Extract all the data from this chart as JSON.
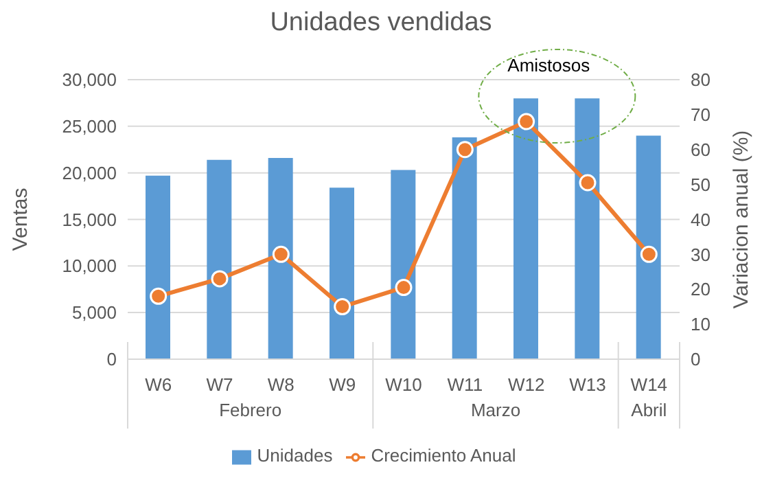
{
  "chart_data": {
    "type": "bar",
    "title": "Unidades vendidas",
    "ylabel": "Ventas",
    "y2label": "Variacion anual (%)",
    "categories": [
      "W6",
      "W7",
      "W8",
      "W9",
      "W10",
      "W11",
      "W12",
      "W13",
      "W14"
    ],
    "series": [
      {
        "name": "Unidades",
        "color": "#5b9bd5",
        "values": [
          19700,
          21400,
          21600,
          18400,
          20300,
          23800,
          28000,
          28000,
          24000
        ]
      },
      {
        "name": "Crecimiento Anual",
        "type": "line",
        "axis": "y2",
        "color": "#ed7d31",
        "marker": "circle",
        "values": [
          18,
          23,
          30,
          15,
          20.5,
          60,
          68,
          50.5,
          30
        ]
      }
    ],
    "ylim": [
      0,
      30000
    ],
    "yticks": [
      0,
      {
        "value": 5000,
        "label": "5,000"
      },
      {
        "value": 10000,
        "label": "10,000"
      },
      {
        "value": 15000,
        "label": "15,000"
      },
      {
        "value": 20000,
        "label": "20,000"
      },
      {
        "value": 25000,
        "label": "25,000"
      },
      {
        "value": 30000,
        "label": "30,000"
      }
    ],
    "y2lim": [
      0,
      80
    ],
    "y2ticks": [
      0,
      10,
      20,
      30,
      40,
      50,
      60,
      70,
      80
    ],
    "grid": "y",
    "legend": "bottom",
    "annotations": [
      "Amistosos",
      "Febrero",
      "Marzo",
      "Abril"
    ]
  }
}
